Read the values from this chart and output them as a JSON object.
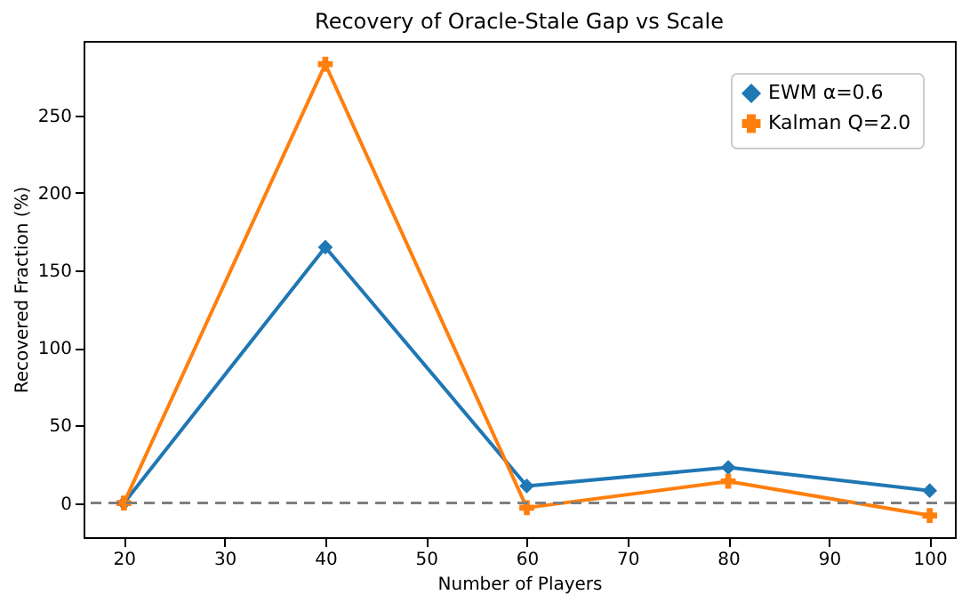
{
  "chart_data": {
    "type": "line",
    "title": "Recovery of Oracle-Stale Gap vs Scale",
    "xlabel": "Number of Players",
    "ylabel": "Recovered Fraction (%)",
    "x": [
      20,
      40,
      60,
      80,
      100
    ],
    "series": [
      {
        "name": "EWM α=0.6",
        "color": "#1f77b4",
        "marker": "diamond",
        "values": [
          0,
          165,
          11,
          23,
          8
        ]
      },
      {
        "name": "Kalman Q=2.0",
        "color": "#ff7f0e",
        "marker": "cross",
        "values": [
          0,
          283,
          -3,
          14,
          -8
        ]
      }
    ],
    "xlim": [
      16,
      102.5
    ],
    "xticks": [
      20,
      30,
      40,
      50,
      60,
      70,
      80,
      90,
      100
    ],
    "ylim": [
      -22,
      298
    ],
    "yticks": [
      0,
      50,
      100,
      150,
      200,
      250
    ],
    "ref_lines": [
      {
        "axis": "y",
        "value": 0,
        "color": "#7f7f7f",
        "line_style": "dashed"
      }
    ],
    "legend": "top right",
    "grid": false,
    "line_style": "solid"
  }
}
